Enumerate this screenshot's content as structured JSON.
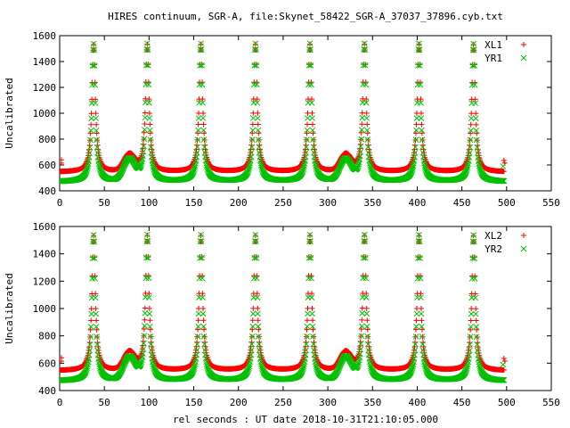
{
  "chart_data": {
    "title": "HIRES continuum, SGR-A, file:Skynet_58422_SGR-A_37037_37896.cyb.txt",
    "xlabel": "rel seconds : UT date 2018-10-31T21:10:05.000",
    "colors": {
      "L": "#ff0000",
      "R": "#00c000"
    },
    "marker_shapes": {
      "L": "plus",
      "R": "cross"
    },
    "plots": [
      {
        "type": "scatter",
        "ylabel": "Uncalibrated",
        "xlim": [
          0,
          550
        ],
        "ylim": [
          400,
          1600
        ],
        "xticks": [
          0,
          50,
          100,
          150,
          200,
          250,
          300,
          350,
          400,
          450,
          500,
          550
        ],
        "yticks": [
          400,
          600,
          800,
          1000,
          1200,
          1400,
          1600
        ],
        "legend_position": "top-right",
        "series": [
          {
            "name": "XL1",
            "channel": "L",
            "baseline": 545,
            "peak": 1530,
            "bump": 130
          },
          {
            "name": "YR1",
            "channel": "R",
            "baseline": 470,
            "peak": 1535,
            "bump": 165
          }
        ]
      },
      {
        "type": "scatter",
        "ylabel": "Uncalibrated",
        "xlim": [
          0,
          550
        ],
        "ylim": [
          400,
          1600
        ],
        "xticks": [
          0,
          50,
          100,
          150,
          200,
          250,
          300,
          350,
          400,
          450,
          500,
          550
        ],
        "yticks": [
          400,
          600,
          800,
          1000,
          1200,
          1400,
          1600
        ],
        "legend_position": "top-right",
        "series": [
          {
            "name": "XL2",
            "channel": "L",
            "baseline": 545,
            "peak": 1530,
            "bump": 130
          },
          {
            "name": "YR2",
            "channel": "R",
            "baseline": 470,
            "peak": 1535,
            "bump": 165
          }
        ]
      }
    ],
    "signal": {
      "x_range": [
        0,
        497
      ],
      "peak_x": [
        38,
        98,
        158,
        219,
        280,
        341,
        402,
        463
      ],
      "secondary_bump_x": [
        78,
        320
      ],
      "outlier_points": [
        [
          2,
          640,
          "L"
        ],
        [
          2,
          615,
          "L"
        ],
        [
          497,
          635,
          "L"
        ],
        [
          498,
          615,
          "L"
        ],
        [
          496,
          590,
          "R"
        ]
      ]
    }
  }
}
